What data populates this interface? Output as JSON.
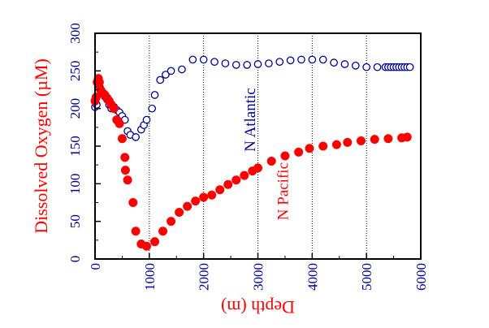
{
  "chart_data": {
    "type": "scatter",
    "xlabel": "Depth (m)",
    "ylabel": "Dissolved Oxygen (µM)",
    "xlim": [
      0,
      6000
    ],
    "ylim": [
      0,
      300
    ],
    "xticks": [
      "0",
      "1000",
      "2000",
      "3000",
      "4000",
      "5000",
      "6000"
    ],
    "yticks": [
      "0",
      "50",
      "100",
      "150",
      "200",
      "250",
      "300"
    ],
    "grid": "vertical dotted lines at x = 1000–5000",
    "annotations": [
      {
        "text": "N Atlantic",
        "x": 2950,
        "y": 185,
        "color": "#000099"
      },
      {
        "text": "N Pacific",
        "x": 3550,
        "y": 90,
        "color": "#ff0000"
      }
    ],
    "colors": {
      "tick_labels": "#000099",
      "ylabel": "#ff0000",
      "xlabel": "#ff0000",
      "atlantic": "#000099",
      "pacific": "#ff0000"
    },
    "series": [
      {
        "name": "N Atlantic",
        "marker": "open-circle",
        "color": "#000099",
        "points": [
          [
            0,
            202
          ],
          [
            30,
            205
          ],
          [
            60,
            222
          ],
          [
            90,
            228
          ],
          [
            120,
            224
          ],
          [
            150,
            220
          ],
          [
            180,
            216
          ],
          [
            220,
            212
          ],
          [
            260,
            205
          ],
          [
            300,
            200
          ],
          [
            350,
            202
          ],
          [
            400,
            198
          ],
          [
            450,
            195
          ],
          [
            500,
            190
          ],
          [
            550,
            185
          ],
          [
            600,
            170
          ],
          [
            650,
            165
          ],
          [
            750,
            162
          ],
          [
            850,
            172
          ],
          [
            900,
            178
          ],
          [
            950,
            185
          ],
          [
            1050,
            200
          ],
          [
            1100,
            218
          ],
          [
            1200,
            238
          ],
          [
            1300,
            245
          ],
          [
            1400,
            250
          ],
          [
            1600,
            252
          ],
          [
            1800,
            265
          ],
          [
            2000,
            265
          ],
          [
            2200,
            262
          ],
          [
            2400,
            260
          ],
          [
            2600,
            258
          ],
          [
            2800,
            258
          ],
          [
            3000,
            259
          ],
          [
            3200,
            260
          ],
          [
            3400,
            262
          ],
          [
            3600,
            264
          ],
          [
            3800,
            265
          ],
          [
            4000,
            265
          ],
          [
            4200,
            265
          ],
          [
            4400,
            261
          ],
          [
            4600,
            259
          ],
          [
            4800,
            257
          ],
          [
            5000,
            255
          ],
          [
            5200,
            255
          ],
          [
            5350,
            255
          ],
          [
            5400,
            255
          ],
          [
            5450,
            255
          ],
          [
            5500,
            255
          ],
          [
            5550,
            255
          ],
          [
            5600,
            255
          ],
          [
            5650,
            255
          ],
          [
            5700,
            255
          ],
          [
            5750,
            255
          ],
          [
            5800,
            255
          ]
        ]
      },
      {
        "name": "N Pacific",
        "marker": "filled-circle",
        "color": "#ff0000",
        "points": [
          [
            0,
            210
          ],
          [
            20,
            215
          ],
          [
            40,
            235
          ],
          [
            60,
            240
          ],
          [
            80,
            235
          ],
          [
            100,
            225
          ],
          [
            120,
            222
          ],
          [
            150,
            220
          ],
          [
            180,
            218
          ],
          [
            220,
            214
          ],
          [
            260,
            210
          ],
          [
            300,
            205
          ],
          [
            350,
            200
          ],
          [
            400,
            185
          ],
          [
            450,
            180
          ],
          [
            500,
            160
          ],
          [
            550,
            135
          ],
          [
            560,
            118
          ],
          [
            600,
            105
          ],
          [
            700,
            75
          ],
          [
            750,
            37
          ],
          [
            850,
            20
          ],
          [
            950,
            17
          ],
          [
            1100,
            23
          ],
          [
            1250,
            37
          ],
          [
            1400,
            50
          ],
          [
            1550,
            62
          ],
          [
            1700,
            70
          ],
          [
            1850,
            77
          ],
          [
            2000,
            82
          ],
          [
            2150,
            85
          ],
          [
            2300,
            92
          ],
          [
            2450,
            99
          ],
          [
            2600,
            105
          ],
          [
            2750,
            111
          ],
          [
            2900,
            117
          ],
          [
            3000,
            121
          ],
          [
            3250,
            130
          ],
          [
            3500,
            137
          ],
          [
            3750,
            142
          ],
          [
            3950,
            147
          ],
          [
            4200,
            150
          ],
          [
            4450,
            152
          ],
          [
            4650,
            155
          ],
          [
            4900,
            157
          ],
          [
            5150,
            159
          ],
          [
            5400,
            160
          ],
          [
            5650,
            161
          ],
          [
            5750,
            162
          ]
        ]
      }
    ]
  }
}
